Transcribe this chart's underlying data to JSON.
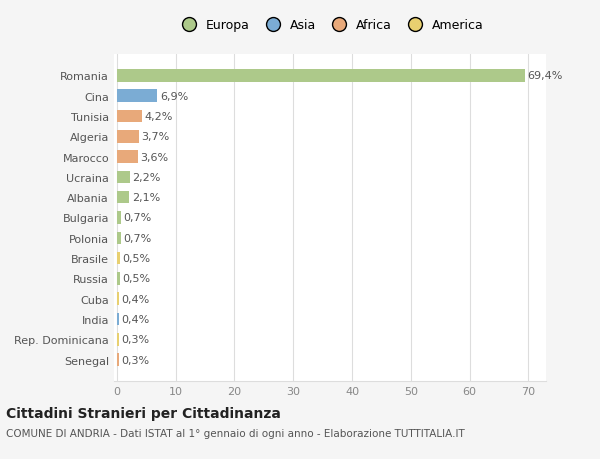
{
  "countries": [
    "Romania",
    "Cina",
    "Tunisia",
    "Algeria",
    "Marocco",
    "Ucraina",
    "Albania",
    "Bulgaria",
    "Polonia",
    "Brasile",
    "Russia",
    "Cuba",
    "India",
    "Rep. Dominicana",
    "Senegal"
  ],
  "values": [
    69.4,
    6.9,
    4.2,
    3.7,
    3.6,
    2.2,
    2.1,
    0.7,
    0.7,
    0.5,
    0.5,
    0.4,
    0.4,
    0.3,
    0.3
  ],
  "labels": [
    "69,4%",
    "6,9%",
    "4,2%",
    "3,7%",
    "3,6%",
    "2,2%",
    "2,1%",
    "0,7%",
    "0,7%",
    "0,5%",
    "0,5%",
    "0,4%",
    "0,4%",
    "0,3%",
    "0,3%"
  ],
  "categories": [
    "Europa",
    "Asia",
    "Africa",
    "Africa",
    "Africa",
    "Europa",
    "Europa",
    "Europa",
    "Europa",
    "America",
    "Europa",
    "America",
    "Asia",
    "America",
    "Africa"
  ],
  "colors": {
    "Europa": "#adc98a",
    "Asia": "#7bacd4",
    "Africa": "#e8a97a",
    "America": "#e8d070"
  },
  "legend_order": [
    "Europa",
    "Asia",
    "Africa",
    "America"
  ],
  "title": "Cittadini Stranieri per Cittadinanza",
  "subtitle": "COMUNE DI ANDRIA - Dati ISTAT al 1° gennaio di ogni anno - Elaborazione TUTTITALIA.IT",
  "xlim": [
    -0.5,
    73
  ],
  "xticks": [
    0,
    10,
    20,
    30,
    40,
    50,
    60,
    70
  ],
  "bg_color": "#f5f5f5",
  "bar_bg_color": "#ffffff",
  "grid_color": "#dddddd",
  "label_fontsize": 8,
  "ytick_fontsize": 8,
  "xtick_fontsize": 8,
  "title_fontsize": 10,
  "subtitle_fontsize": 7.5,
  "legend_fontsize": 9
}
